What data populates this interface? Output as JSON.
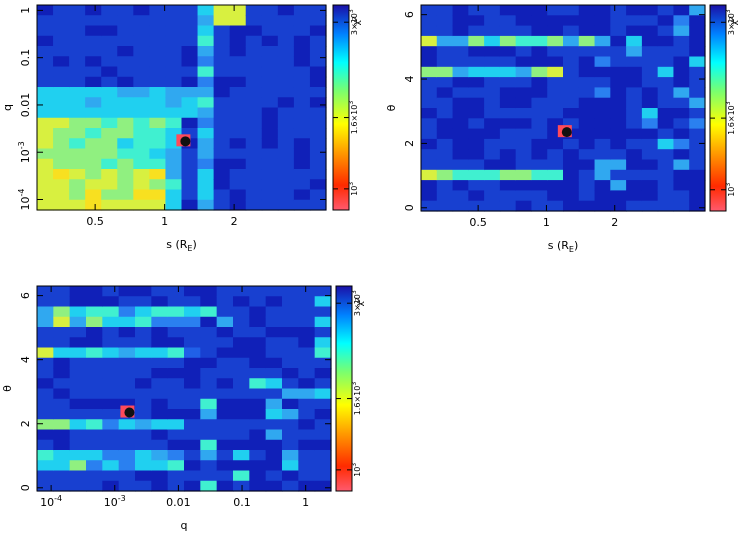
{
  "chart_data": [
    {
      "type": "heatmap",
      "id": "panel-s-q",
      "xlabel": "s (R_E)",
      "xlabel_main": "s (R",
      "xlabel_sub": "E",
      "xlabel_close": ")",
      "ylabel": "q",
      "x_scale": "log",
      "y_scale": "log",
      "xlim": [
        0.28,
        5.0
      ],
      "ylim": [
        6e-05,
        1.3
      ],
      "x_ticks": [
        {
          "v": 0.5,
          "label": "0.5"
        },
        {
          "v": 1,
          "label": "1"
        },
        {
          "v": 2,
          "label": "2"
        }
      ],
      "y_ticks": [
        {
          "v": 0.0001,
          "label": "10^-4",
          "base": "10",
          "exp": "-4"
        },
        {
          "v": 0.001,
          "label": "10^-3",
          "base": "10",
          "exp": "-3"
        },
        {
          "v": 0.01,
          "label": "0.01"
        },
        {
          "v": 0.1,
          "label": "0.1"
        },
        {
          "v": 1,
          "label": "1"
        }
      ],
      "best_fit": {
        "s": 1.23,
        "q": 0.0017
      },
      "colorbar": {
        "label": "χ²",
        "ticks": [
          {
            "v": 1000,
            "label": "10^3",
            "base": "10",
            "exp": "3"
          },
          {
            "v": 1600,
            "label": "1.6×10^3",
            "base": "1.6×10",
            "exp": "3"
          },
          {
            "v": 3000,
            "label": "3×10^3",
            "base": "3×10",
            "exp": "3"
          }
        ]
      }
    },
    {
      "type": "heatmap",
      "id": "panel-s-theta",
      "xlabel": "s (R_E)",
      "xlabel_main": "s (R",
      "xlabel_sub": "E",
      "xlabel_close": ")",
      "ylabel": "θ",
      "x_scale": "log",
      "y_scale": "linear",
      "xlim": [
        0.28,
        5.0
      ],
      "ylim": [
        -0.1,
        6.3
      ],
      "x_ticks": [
        {
          "v": 0.5,
          "label": "0.5"
        },
        {
          "v": 1,
          "label": "1"
        },
        {
          "v": 2,
          "label": "2"
        }
      ],
      "y_ticks": [
        {
          "v": 0,
          "label": "0"
        },
        {
          "v": 2,
          "label": "2"
        },
        {
          "v": 4,
          "label": "4"
        },
        {
          "v": 6,
          "label": "6"
        }
      ],
      "best_fit": {
        "s": 1.23,
        "theta": 2.35
      },
      "colorbar": {
        "label": "χ²",
        "ticks": [
          {
            "v": 1000,
            "label": "10^3",
            "base": "10",
            "exp": "3"
          },
          {
            "v": 1600,
            "label": "1.6×10^3",
            "base": "1.6×10",
            "exp": "3"
          },
          {
            "v": 3000,
            "label": "3×10^3",
            "base": "3×10",
            "exp": "3"
          }
        ]
      }
    },
    {
      "type": "heatmap",
      "id": "panel-q-theta",
      "xlabel": "q",
      "ylabel": "θ",
      "x_scale": "log",
      "y_scale": "linear",
      "xlim": [
        6e-05,
        2.5
      ],
      "ylim": [
        -0.1,
        6.3
      ],
      "x_ticks": [
        {
          "v": 0.0001,
          "label": "10^-4",
          "base": "10",
          "exp": "-4"
        },
        {
          "v": 0.001,
          "label": "10^-3",
          "base": "10",
          "exp": "-3"
        },
        {
          "v": 0.01,
          "label": "0.01"
        },
        {
          "v": 0.1,
          "label": "0.1"
        },
        {
          "v": 1,
          "label": "1"
        }
      ],
      "y_ticks": [
        {
          "v": 0,
          "label": "0"
        },
        {
          "v": 2,
          "label": "2"
        },
        {
          "v": 4,
          "label": "4"
        },
        {
          "v": 6,
          "label": "6"
        }
      ],
      "best_fit": {
        "q": 0.0017,
        "theta": 2.35
      },
      "colorbar": {
        "label": "χ²",
        "ticks": [
          {
            "v": 1000,
            "label": "10^3",
            "base": "10",
            "exp": "3"
          },
          {
            "v": 1600,
            "label": "1.6×10^3",
            "base": "1.6×10",
            "exp": "3"
          },
          {
            "v": 3000,
            "label": "3×10^3",
            "base": "3×10",
            "exp": "3"
          }
        ]
      }
    }
  ]
}
